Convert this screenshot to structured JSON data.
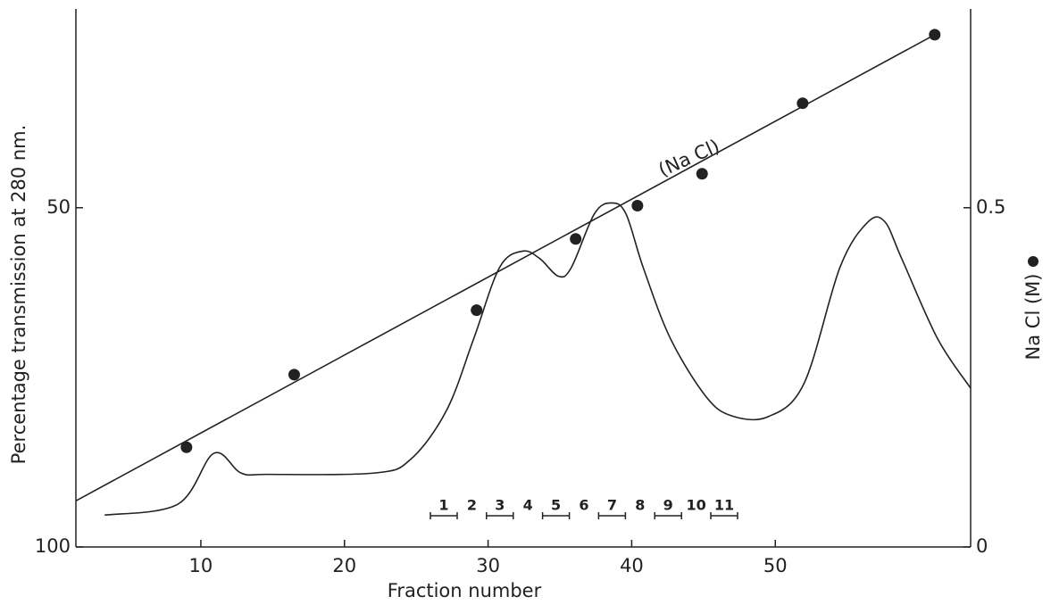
{
  "chart_data": {
    "type": "line",
    "xlabel": "Fraction number",
    "ylabel": "Percentage transmission at 280 nm.",
    "y2label": "Na Cl (M)",
    "annotation": "(Na Cl)",
    "fraction_labels": [
      "1",
      "2",
      "3",
      "4",
      "5",
      "6",
      "7",
      "8",
      "9",
      "10",
      "11"
    ],
    "xlim": [
      1.3,
      63.6
    ],
    "xticks": [
      10,
      20,
      30,
      40,
      50
    ],
    "ylim": [
      100,
      20.7
    ],
    "yticks": [
      50,
      100
    ],
    "y2lim": [
      0,
      0.793
    ],
    "y2ticks": [
      0,
      0.5
    ],
    "grid": false,
    "series": [
      {
        "kind": "curve",
        "color": "#222222",
        "axis": "y",
        "x": [
          3.3,
          8.4,
          10.9,
          12.8,
          14.7,
          22.1,
          24.6,
          27.1,
          29.0,
          30.8,
          32.4,
          33.6,
          34.9,
          35.8,
          37.4,
          38.6,
          39.6,
          40.8,
          42.7,
          45.2,
          47.0,
          49.5,
          52.0,
          54.5,
          56.4,
          57.6,
          58.8,
          61.3,
          63.6
        ],
        "values": [
          95.3,
          93.7,
          86.2,
          89.1,
          89.3,
          89.1,
          87.1,
          79.9,
          69.3,
          58.8,
          56.4,
          57.5,
          60.1,
          58.8,
          50.9,
          49.3,
          50.9,
          58.8,
          69.3,
          77.9,
          80.7,
          80.8,
          75.9,
          58.8,
          52.2,
          52.0,
          57.5,
          69.3,
          76.6
        ]
      },
      {
        "kind": "line",
        "color": "#222222",
        "axis": "y2",
        "x": [
          1.3,
          61.1
        ],
        "values": [
          0.068,
          0.755
        ]
      },
      {
        "kind": "points",
        "color": "#222222",
        "axis": "y2",
        "x": [
          9.0,
          16.5,
          29.2,
          36.1,
          40.4,
          44.9,
          51.9,
          61.1
        ],
        "values": [
          0.147,
          0.254,
          0.349,
          0.454,
          0.503,
          0.55,
          0.654,
          0.755
        ]
      }
    ]
  }
}
